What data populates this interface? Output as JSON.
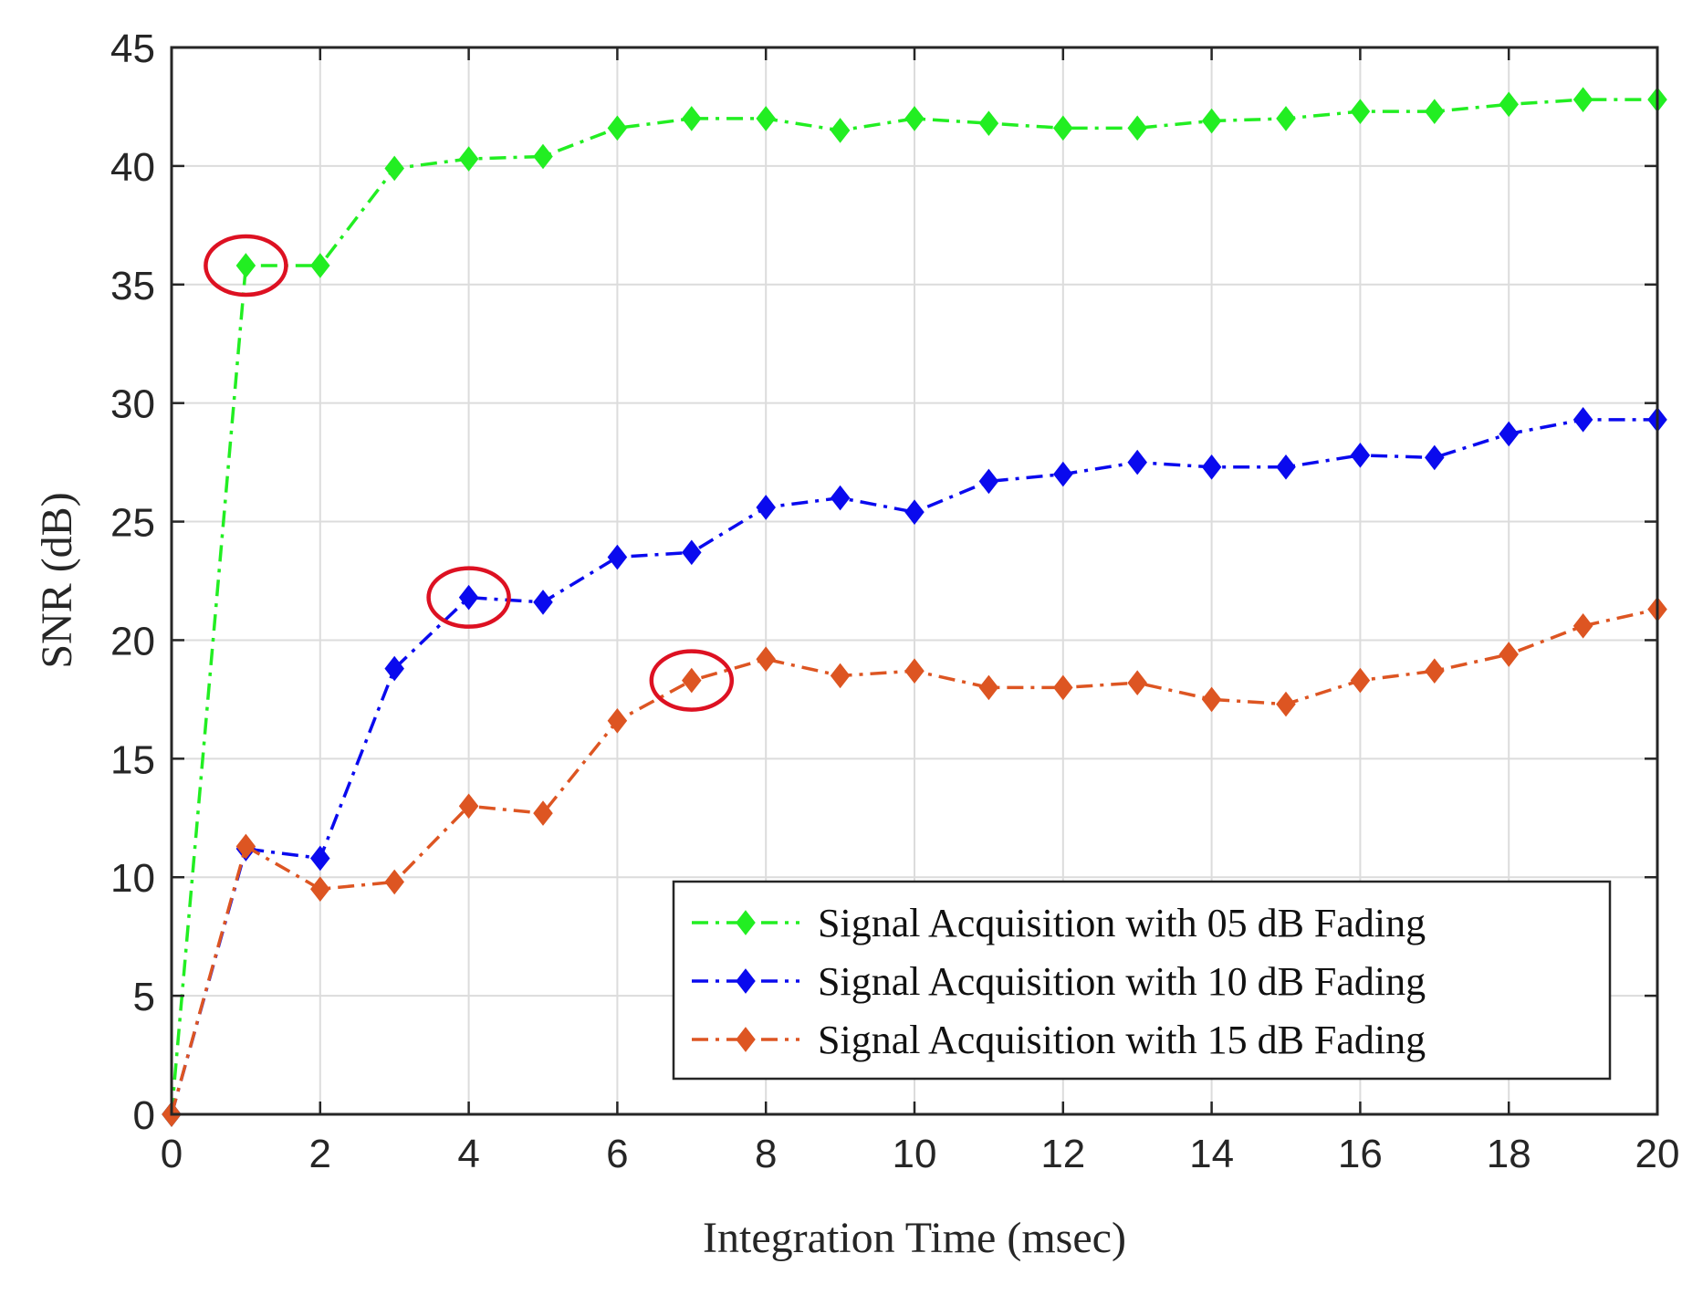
{
  "chart_data": {
    "type": "line",
    "title": "",
    "xlabel": "Integration Time (msec)",
    "ylabel": "SNR (dB)",
    "xlim": [
      0,
      20
    ],
    "ylim": [
      0,
      45
    ],
    "x_ticks": [
      0,
      2,
      4,
      6,
      8,
      10,
      12,
      14,
      16,
      18,
      20
    ],
    "y_ticks": [
      0,
      5,
      10,
      15,
      20,
      25,
      30,
      35,
      40,
      45
    ],
    "grid": true,
    "legend_position": "bottom-right",
    "x": [
      0,
      1,
      2,
      3,
      4,
      5,
      6,
      7,
      8,
      9,
      10,
      11,
      12,
      13,
      14,
      15,
      16,
      17,
      18,
      19,
      20
    ],
    "series": [
      {
        "name": "Signal Acquisition with 05 dB Fading",
        "color": "#22ee22",
        "line_style": "dash-dot",
        "marker": "diamond",
        "values": [
          0,
          35.8,
          35.8,
          39.9,
          40.3,
          40.4,
          41.6,
          42.0,
          42.0,
          41.5,
          42.0,
          41.8,
          41.6,
          41.6,
          41.9,
          42.0,
          42.3,
          42.3,
          42.6,
          42.8,
          42.8
        ]
      },
      {
        "name": "Signal Acquisition with 10 dB Fading",
        "color": "#0a0aee",
        "line_style": "dash-dot",
        "marker": "diamond",
        "values": [
          0,
          11.2,
          10.8,
          18.8,
          21.8,
          21.6,
          23.5,
          23.7,
          25.6,
          26.0,
          25.4,
          26.7,
          27.0,
          27.5,
          27.3,
          27.3,
          27.8,
          27.7,
          28.7,
          29.3,
          29.3
        ]
      },
      {
        "name": "Signal Acquisition with 15 dB Fading",
        "color": "#dd5522",
        "line_style": "dash-dot",
        "marker": "diamond",
        "values": [
          0,
          11.3,
          9.5,
          9.8,
          13.0,
          12.7,
          16.6,
          18.3,
          19.2,
          18.5,
          18.7,
          18.0,
          18.0,
          18.2,
          17.5,
          17.3,
          18.3,
          18.7,
          19.4,
          20.6,
          21.3
        ]
      }
    ],
    "highlights": [
      {
        "series": "Signal Acquisition with 05 dB Fading",
        "x": 1,
        "y": 35.8,
        "color": "#dd1122"
      },
      {
        "series": "Signal Acquisition with 10 dB Fading",
        "x": 4,
        "y": 21.8,
        "color": "#dd1122"
      },
      {
        "series": "Signal Acquisition with 15 dB Fading",
        "x": 7,
        "y": 18.3,
        "color": "#dd1122"
      }
    ]
  }
}
